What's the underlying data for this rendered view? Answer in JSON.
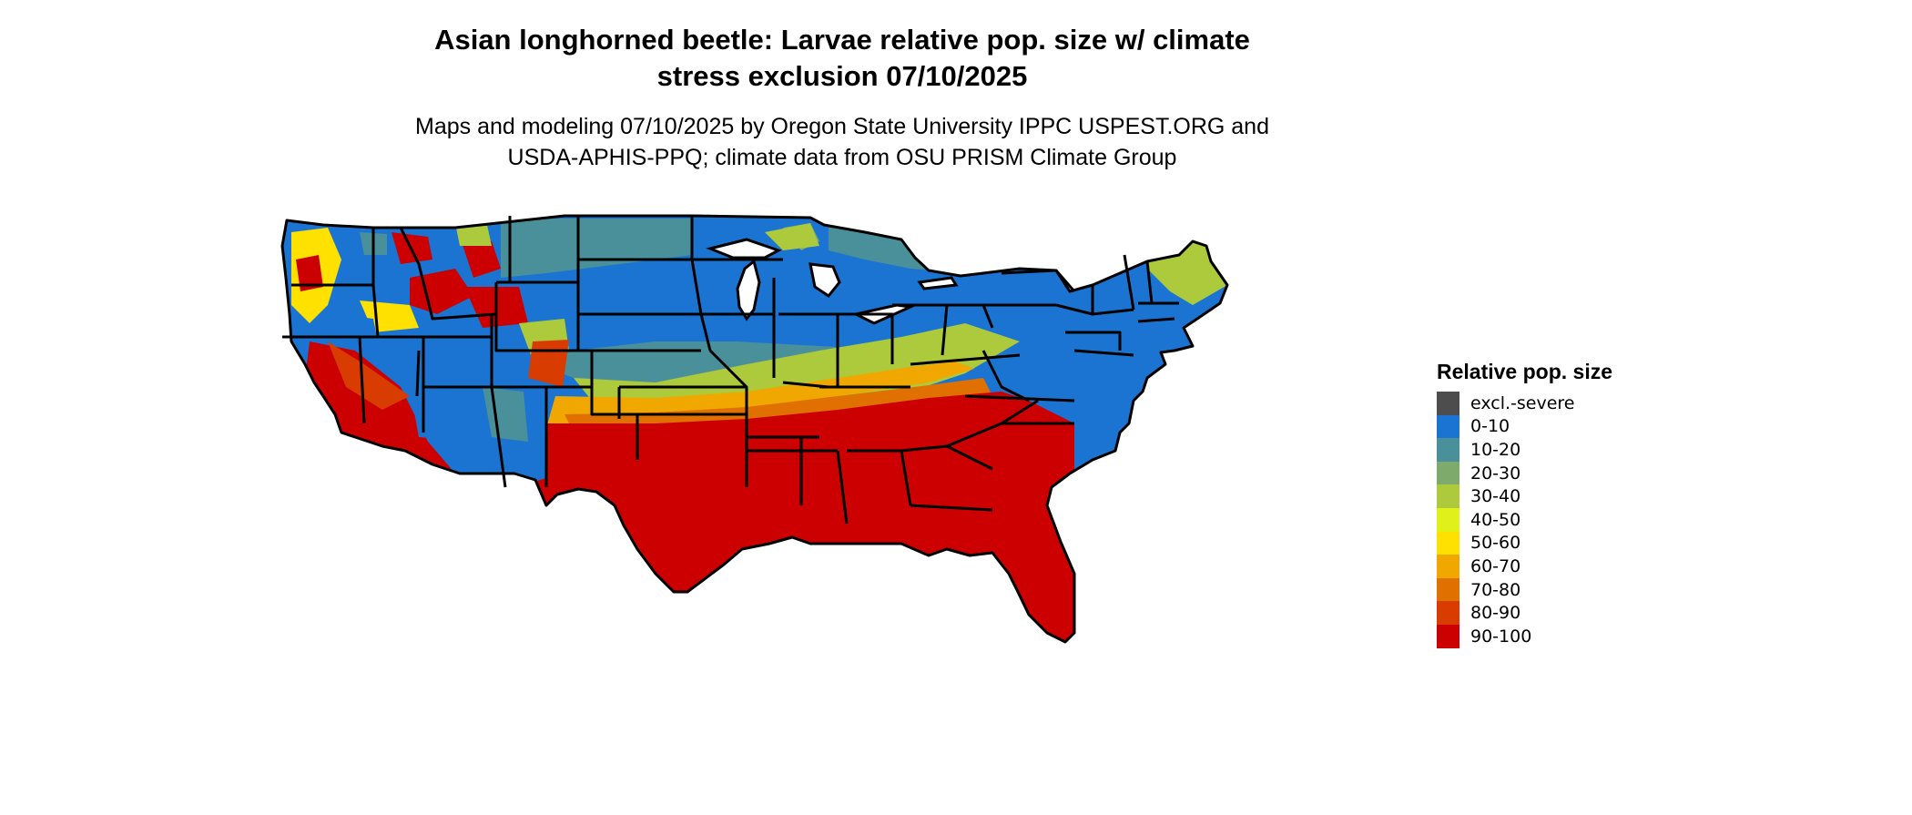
{
  "title_line1": "Asian longhorned beetle: Larvae relative pop. size w/ climate",
  "title_line2": "stress exclusion 07/10/2025",
  "subtitle_line1": "Maps and modeling 07/10/2025 by Oregon State University IPPC USPEST.ORG and",
  "subtitle_line2": "USDA-APHIS-PPQ; climate data from OSU PRISM Climate Group",
  "legend": {
    "title": "Relative pop. size",
    "items": [
      {
        "label": "excl.-severe",
        "color": "#4d4d4d"
      },
      {
        "label": "0-10",
        "color": "#1b74d1"
      },
      {
        "label": "10-20",
        "color": "#4a909b"
      },
      {
        "label": "20-30",
        "color": "#7eaa6b"
      },
      {
        "label": "30-40",
        "color": "#adc93c"
      },
      {
        "label": "40-50",
        "color": "#dff01a"
      },
      {
        "label": "50-60",
        "color": "#ffe100"
      },
      {
        "label": "60-70",
        "color": "#f0a800"
      },
      {
        "label": "70-80",
        "color": "#e07000"
      },
      {
        "label": "80-90",
        "color": "#d83c00"
      },
      {
        "label": "90-100",
        "color": "#cc0000"
      }
    ]
  }
}
